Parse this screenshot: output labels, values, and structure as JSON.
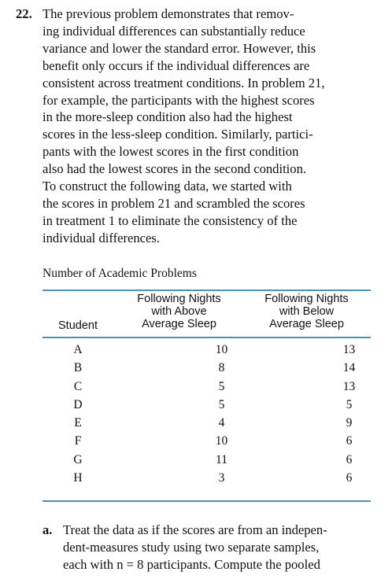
{
  "problem": {
    "number": "22.",
    "lines": [
      "The previous problem demonstrates that remov-",
      "ing individual differences can substantially reduce",
      "variance and lower the standard error. However, this",
      "benefit only occurs if the individual differences are",
      "consistent across treatment conditions. In problem 21,",
      "for example, the participants with the highest scores",
      "in the more-sleep condition also had the highest",
      "scores in the less-sleep condition. Similarly, partici-",
      "pants with the lowest scores in the first condition",
      "also had the lowest scores in the second condition.",
      "To construct the following data, we started with",
      "the scores in problem 21 and scrambled the scores",
      "in treatment 1 to eliminate the consistency of the",
      "individual differences."
    ]
  },
  "table": {
    "title": "Number of Academic Problems",
    "headers": {
      "student": "Student",
      "above": [
        "Following Nights",
        "with Above",
        "Average Sleep"
      ],
      "below": [
        "Following Nights",
        "with Below",
        "Average Sleep"
      ]
    },
    "rows": [
      {
        "student": "A",
        "above": "10",
        "below": "13"
      },
      {
        "student": "B",
        "above": "8",
        "below": "14"
      },
      {
        "student": "C",
        "above": "5",
        "below": "13"
      },
      {
        "student": "D",
        "above": "5",
        "below": "5"
      },
      {
        "student": "E",
        "above": "4",
        "below": "9"
      },
      {
        "student": "F",
        "above": "10",
        "below": "6"
      },
      {
        "student": "G",
        "above": "11",
        "below": "6"
      },
      {
        "student": "H",
        "above": "3",
        "below": "6"
      }
    ]
  },
  "part_a": {
    "label": "a.",
    "lines": [
      "Treat the data as if the scores are from an indepen-",
      "dent-measures study using two separate samples,",
      "each with n = 8 participants. Compute the pooled"
    ]
  }
}
